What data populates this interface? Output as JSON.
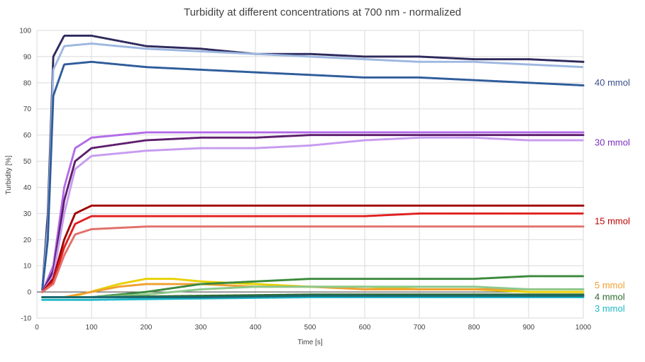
{
  "chart_data": {
    "type": "scatter",
    "title": "Turbidity at different concentrations at 700 nm - normalized",
    "xlabel": "Time [s]",
    "ylabel": "Turbidity [%]",
    "xlim": [
      0,
      1000
    ],
    "ylim": [
      -10,
      100
    ],
    "x_ticks": [
      0,
      100,
      200,
      300,
      400,
      500,
      600,
      700,
      800,
      900,
      1000
    ],
    "y_ticks": [
      -10,
      0,
      10,
      20,
      30,
      40,
      50,
      60,
      70,
      80,
      90,
      100
    ],
    "grid": true,
    "legend": "right-side group labels",
    "groups": [
      {
        "label": "40 mmol",
        "color": "#3B4F8C"
      },
      {
        "label": "30 mmol",
        "color": "#7B2FBE"
      },
      {
        "label": "15 mmol",
        "color": "#C00000"
      },
      {
        "label": "5 mmol",
        "color": "#F0A030"
      },
      {
        "label": "4 mmol",
        "color": "#2E6B2E"
      },
      {
        "label": "3 mmol",
        "color": "#20B8C8"
      }
    ],
    "series": [
      {
        "group": "40 mmol",
        "color": "#2E2A5C",
        "x": [
          10,
          20,
          30,
          50,
          100,
          200,
          300,
          400,
          500,
          600,
          700,
          800,
          900,
          1000
        ],
        "y": [
          1,
          30,
          90,
          98,
          98,
          94,
          93,
          91,
          91,
          90,
          90,
          89,
          89,
          88
        ]
      },
      {
        "group": "40 mmol",
        "color": "#9DB7E0",
        "x": [
          10,
          20,
          30,
          50,
          100,
          200,
          300,
          400,
          500,
          600,
          700,
          800,
          900,
          1000
        ],
        "y": [
          1,
          25,
          85,
          94,
          95,
          93,
          92,
          91,
          90,
          89,
          88,
          88,
          87,
          86
        ]
      },
      {
        "group": "40 mmol",
        "color": "#2F5C9A",
        "x": [
          10,
          20,
          30,
          50,
          100,
          200,
          300,
          400,
          500,
          600,
          700,
          800,
          900,
          1000
        ],
        "y": [
          1,
          20,
          75,
          87,
          88,
          86,
          85,
          84,
          83,
          82,
          82,
          81,
          80,
          79
        ]
      },
      {
        "group": "30 mmol",
        "color": "#B36BE8",
        "x": [
          10,
          30,
          50,
          70,
          100,
          200,
          300,
          400,
          500,
          600,
          700,
          800,
          900,
          1000
        ],
        "y": [
          0,
          10,
          40,
          55,
          59,
          61,
          61,
          61,
          61,
          61,
          61,
          61,
          61,
          61
        ]
      },
      {
        "group": "30 mmol",
        "color": "#5E1F6E",
        "x": [
          10,
          30,
          50,
          70,
          100,
          200,
          300,
          400,
          500,
          600,
          700,
          800,
          900,
          1000
        ],
        "y": [
          0,
          8,
          35,
          50,
          55,
          58,
          59,
          59,
          60,
          60,
          60,
          60,
          60,
          60
        ]
      },
      {
        "group": "30 mmol",
        "color": "#C79BF0",
        "x": [
          10,
          30,
          50,
          70,
          100,
          200,
          300,
          400,
          500,
          600,
          700,
          800,
          900,
          1000
        ],
        "y": [
          0,
          6,
          30,
          47,
          52,
          54,
          55,
          55,
          56,
          58,
          59,
          59,
          58,
          58
        ]
      },
      {
        "group": "15 mmol",
        "color": "#A00000",
        "x": [
          10,
          30,
          50,
          70,
          100,
          200,
          300,
          400,
          500,
          600,
          700,
          800,
          900,
          1000
        ],
        "y": [
          0,
          5,
          20,
          30,
          33,
          33,
          33,
          33,
          33,
          33,
          33,
          33,
          33,
          33
        ]
      },
      {
        "group": "15 mmol",
        "color": "#E02020",
        "x": [
          10,
          30,
          50,
          70,
          100,
          200,
          300,
          400,
          500,
          600,
          700,
          800,
          900,
          1000
        ],
        "y": [
          0,
          4,
          17,
          26,
          29,
          29,
          29,
          29,
          29,
          29,
          30,
          30,
          30,
          30
        ]
      },
      {
        "group": "15 mmol",
        "color": "#E0706A",
        "x": [
          10,
          30,
          50,
          70,
          100,
          200,
          300,
          400,
          500,
          600,
          700,
          800,
          900,
          1000
        ],
        "y": [
          0,
          3,
          14,
          22,
          24,
          25,
          25,
          25,
          25,
          25,
          25,
          25,
          25,
          25
        ]
      },
      {
        "group": "5 mmol",
        "color": "#E8D000",
        "x": [
          10,
          50,
          80,
          150,
          200,
          250,
          300,
          400,
          500,
          600,
          700,
          800,
          900,
          1000
        ],
        "y": [
          -2,
          -2,
          -1,
          3,
          5,
          5,
          4,
          3,
          2,
          2,
          1,
          1,
          0,
          0
        ]
      },
      {
        "group": "5 mmol",
        "color": "#F0A030",
        "x": [
          10,
          50,
          100,
          150,
          200,
          300,
          400,
          500,
          600,
          700,
          800,
          900,
          1000
        ],
        "y": [
          -2,
          -2,
          0,
          2,
          3,
          3,
          2,
          2,
          1,
          1,
          1,
          1,
          1
        ]
      },
      {
        "group": "4 mmol",
        "color": "#3C8A3C",
        "x": [
          10,
          100,
          200,
          300,
          400,
          500,
          600,
          700,
          800,
          900,
          1000
        ],
        "y": [
          -2,
          -2,
          0,
          3,
          4,
          5,
          5,
          5,
          5,
          6,
          6
        ]
      },
      {
        "group": "4 mmol",
        "color": "#8CC88C",
        "x": [
          10,
          100,
          200,
          300,
          400,
          500,
          600,
          700,
          800,
          900,
          1000
        ],
        "y": [
          -2,
          -2,
          -1,
          1,
          2,
          2,
          2,
          2,
          2,
          1,
          1
        ]
      },
      {
        "group": "4 mmol",
        "color": "#2E6B2E",
        "x": [
          10,
          100,
          300,
          500,
          700,
          900,
          1000
        ],
        "y": [
          -2,
          -2,
          -1.5,
          -1,
          -1,
          -1,
          -1
        ]
      },
      {
        "group": "3 mmol",
        "color": "#20B8C8",
        "x": [
          10,
          100,
          300,
          500,
          700,
          900,
          1000
        ],
        "y": [
          -3,
          -3,
          -2.5,
          -2,
          -2,
          -2,
          -2
        ]
      },
      {
        "group": "3 mmol",
        "color": "#1A6A72",
        "x": [
          10,
          100,
          300,
          500,
          700,
          900,
          1000
        ],
        "y": [
          -2,
          -2,
          -2,
          -1.5,
          -1.5,
          -1.5,
          -1.5
        ]
      }
    ]
  }
}
